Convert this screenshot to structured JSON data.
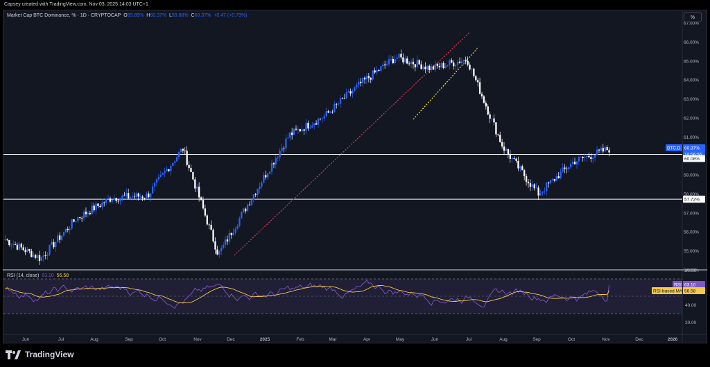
{
  "header": {
    "credit": "Capsey created with TradingView.com, Nov 03, 2025 14:03 UTC+1"
  },
  "legend": {
    "title": "Market Cap BTC Dominance, % · 1D · CRYPTOCAP",
    "open_label": "O",
    "open": "59.89%",
    "high_label": "H",
    "high": "60.37%",
    "low_label": "L",
    "low": "59.88%",
    "close_label": "C",
    "close": "60.37%",
    "change": "+0.47 (+0.79%)"
  },
  "scale_button": "%",
  "rsi": {
    "label": "RSI (14, close)",
    "value": "63.10",
    "ma": "56.58",
    "tag_rsi": "RSI",
    "tag_rsi_value": "63.10",
    "tag_ma_label": "RSI-based MA",
    "tag_ma_value": "56.58",
    "axis": [
      "80.00",
      "60.00",
      "40.00",
      "20.00"
    ]
  },
  "price_axis": [
    "67.00%",
    "66.00%",
    "65.00%",
    "64.00%",
    "63.00%",
    "62.00%",
    "61.00%",
    "60.00%",
    "59.00%",
    "58.00%",
    "57.00%",
    "56.00%",
    "55.00%",
    "54.00%"
  ],
  "price_tags": {
    "symbol": "BTC.D",
    "last": "60.37%",
    "countdown": "10:56:56",
    "level_1": "60.08%",
    "level_2": "57.72%"
  },
  "time_axis": [
    "Jun",
    "Jul",
    "Aug",
    "Sep",
    "Oct",
    "Nov",
    "Dec",
    "2025",
    "Feb",
    "Mar",
    "Apr",
    "May",
    "Jun",
    "Jul",
    "Aug",
    "Sep",
    "Oct",
    "Nov",
    "Dec",
    "2026"
  ],
  "footer": {
    "brand": "TradingView"
  },
  "colors": {
    "candle_up": "#2962ff",
    "candle_down": "#ffffff",
    "background": "#131722",
    "rsi_line": "#7e57c2",
    "rsi_ma": "#f7c948",
    "trend_red": "#e53958",
    "trend_yellow": "#f7e34b"
  },
  "chart_data": {
    "type": "line",
    "title": "Market Cap BTC Dominance, % · 1D · CRYPTOCAP",
    "xlabel": "",
    "ylabel": "",
    "ylim": [
      54,
      67
    ],
    "x": [
      "Jun",
      "Jul",
      "Aug",
      "Sep",
      "Oct",
      "Nov",
      "Dec",
      "2025",
      "Feb",
      "Mar",
      "Apr",
      "May",
      "Jun",
      "Jul",
      "Aug",
      "Sep",
      "Oct",
      "Nov"
    ],
    "series": [
      {
        "values": [
          55.6,
          54.6,
          56.7,
          57.8,
          57.9,
          60.4,
          54.8,
          58.0,
          61.1,
          62.1,
          63.8,
          65.2,
          64.6,
          65.1,
          60.5,
          58.0,
          59.7,
          60.37
        ]
      }
    ],
    "horizontal_levels": [
      60.08,
      57.72
    ],
    "rsi": {
      "value": 63.1,
      "ma": 56.58,
      "ylim": [
        10,
        90
      ]
    }
  }
}
